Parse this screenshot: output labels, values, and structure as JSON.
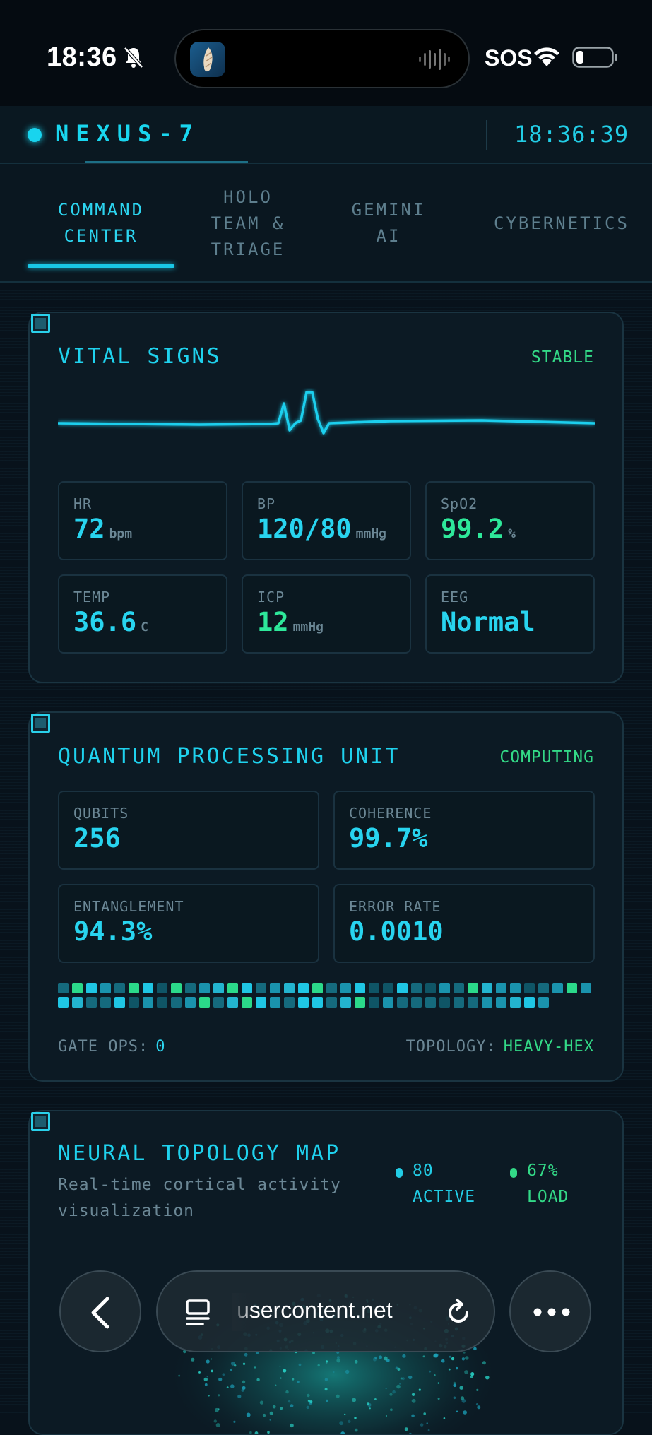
{
  "status_bar": {
    "time": "18:36",
    "sos": "SOS"
  },
  "app": {
    "title": "NEXUS-7",
    "clock": "18:36:39"
  },
  "tabs": [
    {
      "label": "COMMAND\nCENTER",
      "active": true
    },
    {
      "label": "HOLO\nTEAM &\nTRIAGE",
      "active": false
    },
    {
      "label": "GEMINI\nAI",
      "active": false
    },
    {
      "label": "CYBERNETICS",
      "active": false
    }
  ],
  "vitals": {
    "title": "VITAL SIGNS",
    "status": "STABLE",
    "metrics": [
      {
        "label": "HR",
        "value": "72",
        "unit": "bpm"
      },
      {
        "label": "BP",
        "value": "120/80",
        "unit": "mmHg"
      },
      {
        "label": "SpO2",
        "value": "99.2",
        "unit": "%"
      },
      {
        "label": "TEMP",
        "value": "36.6",
        "unit": "C"
      },
      {
        "label": "ICP",
        "value": "12",
        "unit": "mmHg"
      },
      {
        "label": "EEG",
        "value": "Normal",
        "unit": ""
      }
    ]
  },
  "qpu": {
    "title": "QUANTUM PROCESSING UNIT",
    "status": "COMPUTING",
    "metrics": [
      {
        "label": "QUBITS",
        "value": "256"
      },
      {
        "label": "COHERENCE",
        "value": "99.7%"
      },
      {
        "label": "ENTANGLEMENT",
        "value": "94.3%"
      },
      {
        "label": "ERROR RATE",
        "value": "0.0010"
      }
    ],
    "gate_ops_label": "GATE OPS:",
    "gate_ops_value": "0",
    "topology_label": "TOPOLOGY:",
    "topology_value": "HEAVY-HEX"
  },
  "neural": {
    "title": "NEURAL TOPOLOGY MAP",
    "subtitle": "Real-time cortical activity visualization",
    "active_value": "80",
    "active_label": "ACTIVE",
    "load_value": "67%",
    "load_label": "LOAD"
  },
  "browser": {
    "url": "usercontent.net"
  },
  "colors": {
    "accent_cyan": "#1fd2ee",
    "accent_green": "#33d987",
    "background": "#08121b"
  }
}
